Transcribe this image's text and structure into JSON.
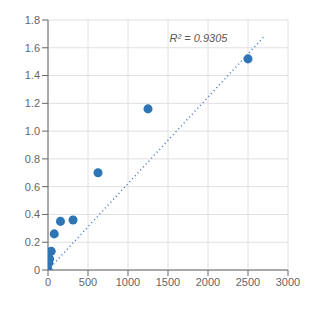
{
  "chart_data": {
    "type": "scatter",
    "series": [
      {
        "type": "scatter",
        "marker": "circle",
        "color": "#2e75b6",
        "x": [
          0,
          10,
          20,
          40,
          78,
          156,
          313,
          625,
          1250,
          2500
        ],
        "values": [
          0.001,
          0.05,
          0.08,
          0.135,
          0.26,
          0.35,
          0.36,
          0.7,
          1.16,
          1.52
        ]
      },
      {
        "type": "line",
        "line_style": "dotted",
        "color": "#4472c4",
        "x": [
          0,
          2700
        ],
        "values": [
          0.0,
          1.68
        ]
      }
    ],
    "annotations": [
      {
        "text": "R² = 0.9305",
        "x": 1520,
        "y": 1.67
      }
    ],
    "xlim": [
      0,
      3000
    ],
    "ylim": [
      0,
      1.8
    ],
    "xticks": [
      0,
      500,
      1000,
      1500,
      2000,
      2500,
      3000
    ],
    "yticks": [
      0,
      0.2,
      0.4,
      0.6,
      0.8,
      {
        "value": 1.0,
        "label": "1.0"
      },
      1.2,
      1.4,
      1.6,
      1.8
    ],
    "grid": true
  }
}
